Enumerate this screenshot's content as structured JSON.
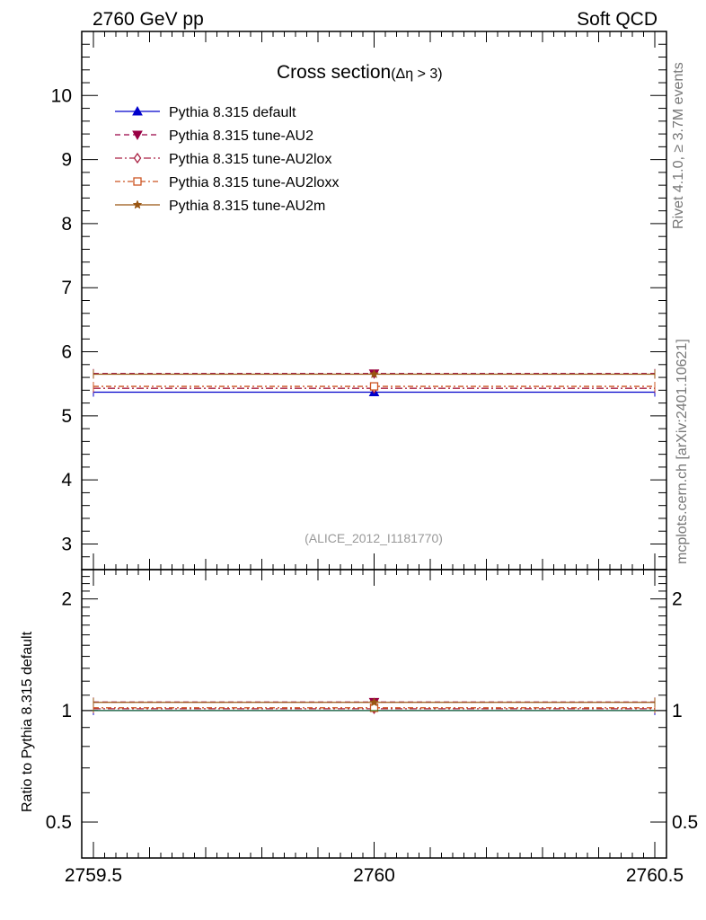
{
  "header": {
    "left": "2760 GeV pp",
    "right": "Soft QCD"
  },
  "side_labels": {
    "rivet": "Rivet 4.1.0, ≥ 3.7M events",
    "mcplots": "mcplots.cern.ch [arXiv:2401.10621]"
  },
  "chart_data": [
    {
      "type": "line",
      "panel": "main",
      "title": "Cross section",
      "title_sub": "(Δη > 3)",
      "reference": "(ALICE_2012_I1181770)",
      "xlim": [
        2759.5,
        2760.5
      ],
      "ylim": [
        2.6,
        11.0
      ],
      "xticks": [
        "2759.5",
        "2760",
        "2760.5"
      ],
      "yticks": [
        3,
        4,
        5,
        6,
        7,
        8,
        9,
        10
      ],
      "ytick_labels": [
        "3",
        "4",
        "5",
        "6",
        "7",
        "8",
        "9",
        "10"
      ],
      "series": [
        {
          "name": "Pythia 8.315 default",
          "x": 2760,
          "y": 5.37,
          "xerr": [
            2759.5,
            2760.5
          ],
          "color": "#0000cc",
          "dash": "",
          "marker": "triangle-up"
        },
        {
          "name": "Pythia 8.315 tune-AU2",
          "x": 2760,
          "y": 5.66,
          "xerr": [
            2759.5,
            2760.5
          ],
          "color": "#990044",
          "dash": "6,4",
          "marker": "triangle-down"
        },
        {
          "name": "Pythia 8.315 tune-AU2lox",
          "x": 2760,
          "y": 5.43,
          "xerr": [
            2759.5,
            2760.5
          ],
          "color": "#aa2244",
          "dash": "8,3,2,3",
          "marker": "diamond-open"
        },
        {
          "name": "Pythia 8.315 tune-AU2loxx",
          "x": 2760,
          "y": 5.46,
          "xerr": [
            2759.5,
            2760.5
          ],
          "color": "#cc5522",
          "dash": "6,3,2,3",
          "marker": "square-open"
        },
        {
          "name": "Pythia 8.315 tune-AU2m",
          "x": 2760,
          "y": 5.65,
          "xerr": [
            2759.5,
            2760.5
          ],
          "color": "#995511",
          "dash": "",
          "marker": "star"
        }
      ]
    },
    {
      "type": "line",
      "panel": "ratio",
      "ylabel": "Ratio to Pythia 8.315 default",
      "ylog": true,
      "xlim": [
        2759.5,
        2760.5
      ],
      "ylim": [
        0.4,
        2.4
      ],
      "yticks": [
        0.5,
        1,
        2
      ],
      "ytick_labels": [
        "0.5",
        "1",
        "2"
      ],
      "series": [
        {
          "name": "Pythia 8.315 default",
          "y": 1.0,
          "color": "#0000cc",
          "dash": "",
          "marker": "none"
        },
        {
          "name": "Pythia 8.315 tune-AU2",
          "y": 1.054,
          "color": "#990044",
          "dash": "6,4",
          "marker": "triangle-down"
        },
        {
          "name": "Pythia 8.315 tune-AU2lox",
          "y": 1.011,
          "color": "#aa2244",
          "dash": "8,3,2,3",
          "marker": "diamond-open"
        },
        {
          "name": "Pythia 8.315 tune-AU2loxx",
          "y": 1.017,
          "color": "#cc5522",
          "dash": "6,3,2,3",
          "marker": "square-open"
        },
        {
          "name": "Pythia 8.315 tune-AU2m",
          "y": 1.052,
          "color": "#995511",
          "dash": "",
          "marker": "star"
        }
      ]
    }
  ]
}
